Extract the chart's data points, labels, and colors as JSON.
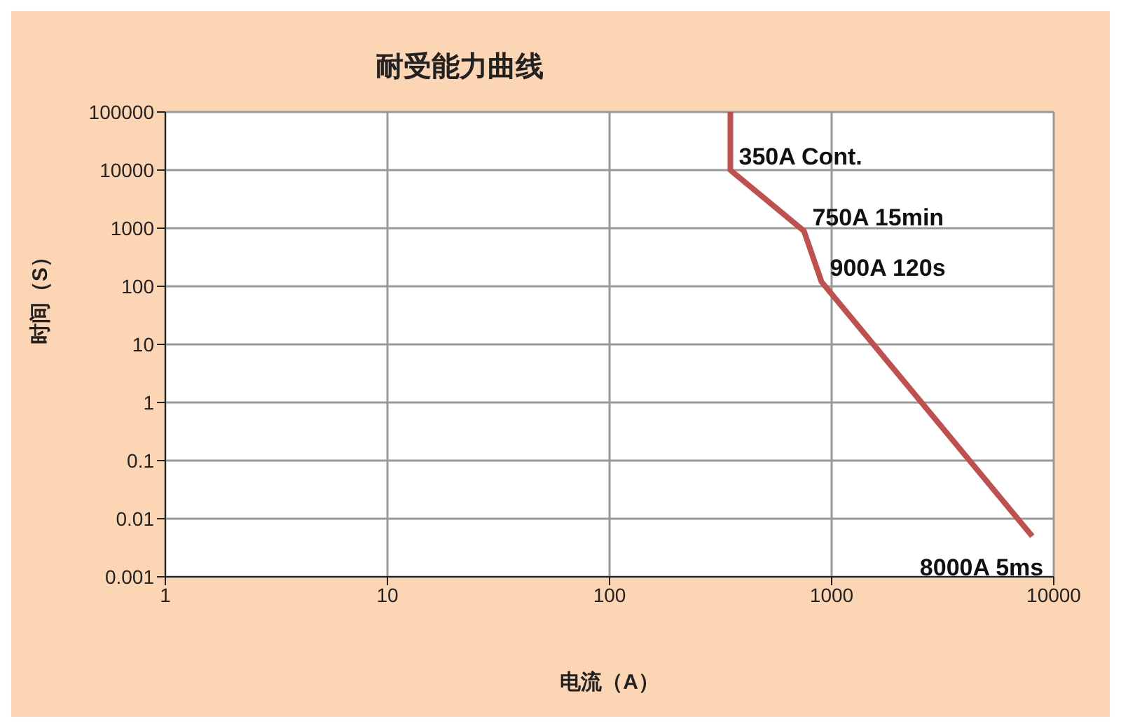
{
  "chart_data": {
    "type": "line",
    "title": "耐受能力曲线",
    "xlabel": "电流（A）",
    "ylabel": "时间（S）",
    "log": "xy",
    "x": [
      350,
      350,
      750,
      900,
      8000
    ],
    "series": [
      {
        "color": "#c0504d",
        "values": [
          100000,
          10000,
          900,
          120,
          0.005
        ]
      }
    ],
    "xlim": [
      1,
      10000
    ],
    "xticks": [
      1,
      10,
      100,
      1000,
      10000
    ],
    "ylim": [
      0.001,
      100000
    ],
    "yticks": [
      0.001,
      0.01,
      0.1,
      1,
      10,
      100,
      1000,
      10000,
      100000
    ],
    "grid": true,
    "marker": "none",
    "line_style": "solid",
    "annotations": [
      {
        "text": "350A Cont.",
        "x": 350,
        "y": 10000
      },
      {
        "text": "750A 15min",
        "x": 750,
        "y": 900
      },
      {
        "text": "900A 120s",
        "x": 900,
        "y": 120
      },
      {
        "text": "8000A 5ms",
        "x": 8000,
        "y": 0.005
      }
    ]
  }
}
